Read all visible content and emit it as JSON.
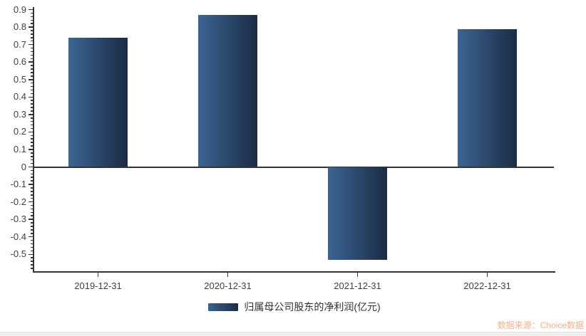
{
  "chart_data": {
    "type": "bar",
    "title": "",
    "categories": [
      "2019-12-31",
      "2020-12-31",
      "2021-12-31",
      "2022-12-31"
    ],
    "values": [
      0.74,
      0.87,
      -0.53,
      0.79
    ],
    "series_name": "归属母公司股东的净利润(亿元)",
    "xlabel": "",
    "ylabel": "",
    "ylim": [
      -0.6,
      0.9
    ],
    "y_major_tick_step": 0.1,
    "y_minor_tick_step": 0.02,
    "y_tick_labels": [
      "0.9",
      "0.8",
      "0.7",
      "0.6",
      "0.5",
      "0.4",
      "0.3",
      "0.2",
      "0.1",
      "0",
      "-0.1",
      "-0.2",
      "-0.3",
      "-0.4",
      "-0.5"
    ],
    "grid": false,
    "legend_position": "bottom",
    "bar_gradient_left": "#3b6593",
    "bar_gradient_right": "#1b2b45",
    "axis_color": "#333333",
    "label_color": "#404040"
  },
  "legend": {
    "label": "归属母公司股东的净利润(亿元)"
  },
  "footer": {
    "source_note": "数据来源：Choice数据",
    "source_color": "#f9ad85"
  }
}
